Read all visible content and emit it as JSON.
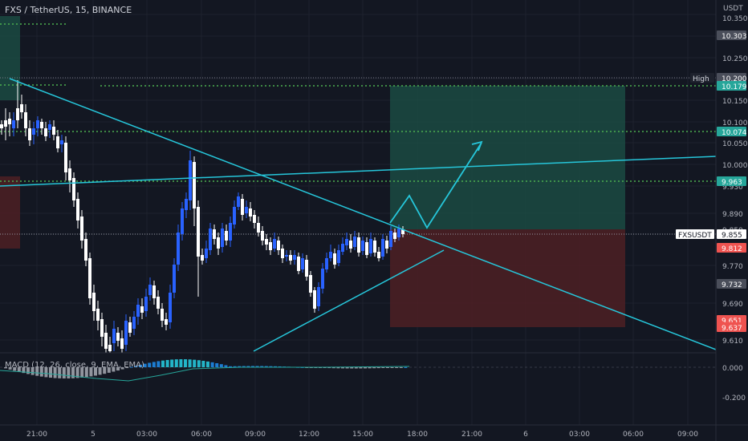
{
  "header": {
    "symbol": "FXS / TetherUS, 15, BINANCE",
    "currency": "USDT"
  },
  "price_axis": {
    "ticks": [
      "10.350",
      "10.250",
      "10.150",
      "10.100",
      "10.050",
      "10.000",
      "9.930",
      "9.890",
      "9.850",
      "9.770",
      "9.690",
      "9.610"
    ],
    "markers": [
      {
        "text": "10.303",
        "bg": "#4a4e5a",
        "fg": "#ffffff"
      },
      {
        "text": "10.200",
        "bg": "#4a4e5a",
        "fg": "#ffffff",
        "tag": "High"
      },
      {
        "text": "10.179",
        "bg": "#26a69a",
        "fg": "#ffffff"
      },
      {
        "text": "10.074",
        "bg": "#26a69a",
        "fg": "#ffffff"
      },
      {
        "text": "9.963",
        "bg": "#26a69a",
        "fg": "#ffffff"
      },
      {
        "text": "9.855",
        "bg": "#ffffff",
        "fg": "#131722",
        "tag": "FXSUSDT"
      },
      {
        "text": "9.812",
        "bg": "#ef5350",
        "fg": "#ffffff"
      },
      {
        "text": "9.732",
        "bg": "#4a4e5a",
        "fg": "#ffffff"
      },
      {
        "text": "9.651",
        "bg": "#ef5350",
        "fg": "#ffffff"
      },
      {
        "text": "9.637",
        "bg": "#ef5350",
        "fg": "#ffffff"
      }
    ]
  },
  "macd": {
    "label": "MACD (12, 26, close, 9, EMA, EMA)",
    "ticks": [
      "0.000",
      "-0.200"
    ]
  },
  "time_axis": [
    "21:00",
    "5",
    "03:00",
    "06:00",
    "09:00",
    "12:00",
    "15:00",
    "18:00",
    "21:00",
    "6",
    "03:00",
    "06:00",
    "09:00"
  ],
  "colors": {
    "bg": "#131722",
    "up": "#2962ff",
    "down": "#ffffff",
    "cyan": "#26c6da",
    "green_dot": "#4caf50",
    "teal_zone": "#1b4d45",
    "red_zone": "#4a1f24"
  },
  "chart_data": {
    "type": "candlestick",
    "title": "FXS / TetherUS, 15, BINANCE",
    "ylabel": "USDT",
    "ylim": [
      9.57,
      10.36
    ],
    "x": [
      "21:00",
      "5",
      "03:00",
      "06:00",
      "09:00",
      "12:00",
      "15:00",
      "18:00",
      "21:00",
      "6",
      "03:00",
      "06:00",
      "09:00"
    ],
    "levels": {
      "high": 10.2,
      "target": 10.179,
      "tp2": 10.074,
      "tp1": 9.963,
      "last": 9.855,
      "stop": 9.637
    },
    "trade": {
      "entry": 9.855,
      "take_profit": 10.179,
      "stop_loss": 9.637
    }
  }
}
